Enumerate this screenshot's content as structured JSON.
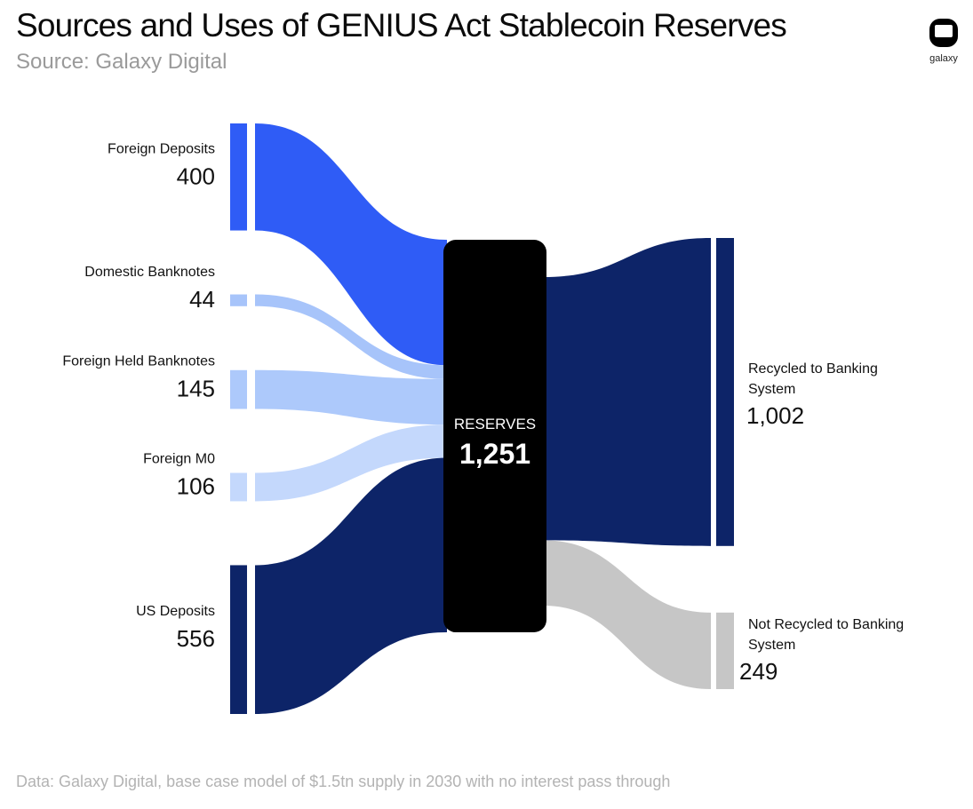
{
  "title": "Sources and Uses of GENIUS Act Stablecoin Reserves",
  "subtitle": "Source: Galaxy Digital",
  "footer": "Data: Galaxy Digital, base case model of $1.5tn supply in 2030 with no interest pass through",
  "logo": {
    "text": "galaxy"
  },
  "chart_data": {
    "type": "sankey",
    "center": {
      "name": "RESERVES",
      "value": 1251,
      "label": "1,251",
      "color": "#000000"
    },
    "sources": [
      {
        "name": "Foreign Deposits",
        "value": 400,
        "label": "400",
        "color": "#2f5cf6"
      },
      {
        "name": "Domestic Banknotes",
        "value": 44,
        "label": "44",
        "color": "#a7c4fa"
      },
      {
        "name": "Foreign Held Banknotes",
        "value": 145,
        "label": "145",
        "color": "#adc9fb"
      },
      {
        "name": "Foreign M0",
        "value": 106,
        "label": "106",
        "color": "#c4d8fc"
      },
      {
        "name": "US Deposits",
        "value": 556,
        "label": "556",
        "color": "#0d2468"
      }
    ],
    "uses": [
      {
        "name_lines": [
          "Recycled to Banking",
          "System"
        ],
        "value": 1002,
        "label": "1,002",
        "color": "#0d2468"
      },
      {
        "name_lines": [
          "Not Recycled to Banking",
          "System"
        ],
        "value": 249,
        "label": "249",
        "color": "#c6c6c6"
      }
    ]
  }
}
